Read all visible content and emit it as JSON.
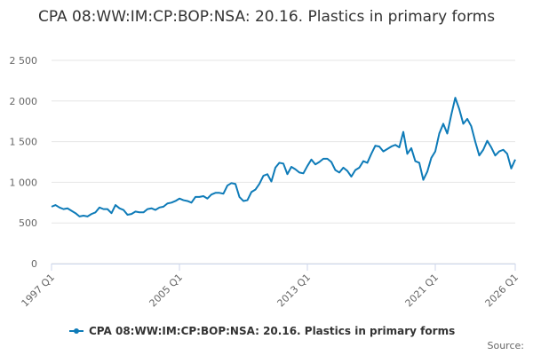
{
  "chart_data": {
    "type": "line",
    "title": "CPA 08:WW:IM:CP:BOP:NSA: 20.16. Plastics in primary forms",
    "source": "Source:",
    "categories": [
      "1997 Q1",
      null,
      null,
      null,
      null,
      null,
      null,
      null,
      null,
      null,
      null,
      null,
      null,
      null,
      null,
      null,
      null,
      null,
      null,
      null,
      null,
      null,
      null,
      null,
      null,
      null,
      null,
      null,
      null,
      null,
      null,
      null,
      "2005 Q1",
      null,
      null,
      null,
      null,
      null,
      null,
      null,
      null,
      null,
      null,
      null,
      null,
      null,
      null,
      null,
      null,
      null,
      null,
      null,
      null,
      null,
      null,
      null,
      null,
      null,
      null,
      null,
      null,
      null,
      null,
      null,
      "2013 Q1",
      null,
      null,
      null,
      null,
      null,
      null,
      null,
      null,
      null,
      null,
      null,
      null,
      null,
      null,
      null,
      null,
      null,
      null,
      null,
      null,
      null,
      null,
      null,
      null,
      null,
      null,
      null,
      null,
      null,
      null,
      null,
      "2021 Q1",
      null,
      null,
      null,
      null,
      null,
      null,
      null,
      null,
      null,
      null,
      null,
      null,
      null,
      null,
      null,
      null,
      null,
      null,
      null,
      "2026 Q1"
    ],
    "series": [
      {
        "name": "CPA 08:WW:IM:CP:BOP:NSA: 20.16. Plastics in primary forms",
        "color": "#0e7bb8",
        "values": [
          700,
          720,
          690,
          670,
          680,
          650,
          620,
          580,
          590,
          580,
          610,
          630,
          690,
          670,
          670,
          620,
          720,
          680,
          660,
          600,
          610,
          640,
          630,
          630,
          670,
          680,
          660,
          690,
          700,
          740,
          750,
          770,
          800,
          780,
          770,
          750,
          820,
          820,
          830,
          800,
          850,
          870,
          870,
          860,
          960,
          990,
          980,
          820,
          770,
          780,
          880,
          910,
          980,
          1080,
          1100,
          1010,
          1180,
          1240,
          1230,
          1100,
          1190,
          1160,
          1120,
          1110,
          1200,
          1280,
          1220,
          1250,
          1290,
          1290,
          1250,
          1150,
          1120,
          1180,
          1140,
          1070,
          1150,
          1180,
          1260,
          1240,
          1350,
          1450,
          1440,
          1380,
          1410,
          1440,
          1460,
          1430,
          1620,
          1350,
          1420,
          1260,
          1240,
          1030,
          1130,
          1300,
          1380,
          1600,
          1720,
          1600,
          1830,
          2040,
          1900,
          1720,
          1780,
          1690,
          1500,
          1330,
          1400,
          1510,
          1430,
          1330,
          1380,
          1400,
          1350,
          1170,
          1280
        ]
      }
    ],
    "ylim": [
      0,
      2500
    ],
    "yticks": [
      0,
      500,
      {
        "value": 1000,
        "label": "1 000"
      },
      {
        "value": 1500,
        "label": "1 500"
      },
      {
        "value": 2000,
        "label": "2 000"
      },
      {
        "value": 2500,
        "label": "2 500"
      }
    ],
    "grid": true,
    "legend": "bottom"
  }
}
